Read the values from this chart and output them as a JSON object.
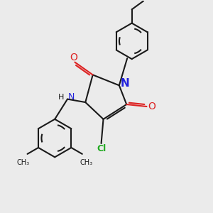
{
  "bg_color": "#ebebeb",
  "bond_color": "#1a1a1a",
  "n_color": "#2222dd",
  "o_color": "#dd2222",
  "cl_color": "#22aa22",
  "lw": 1.5,
  "figsize": [
    3.0,
    3.0
  ],
  "dpi": 100,
  "xlim": [
    0,
    10
  ],
  "ylim": [
    0,
    10
  ],
  "ring_r": 0.85,
  "dmp_ring_r": 0.9
}
